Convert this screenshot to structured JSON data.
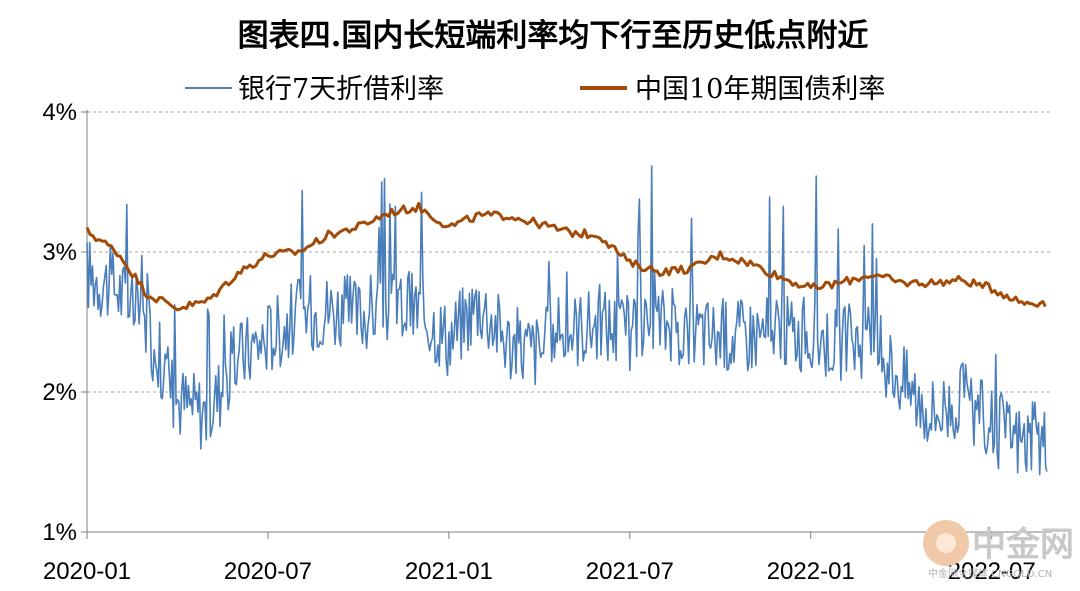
{
  "chart_data": {
    "type": "line",
    "title": "图表四.国内长短端利率均下行至历史低点附近",
    "xlabel": "",
    "ylabel": "",
    "x_ticks": [
      "2020-01",
      "2020-07",
      "2021-01",
      "2021-07",
      "2022-01",
      "2022-07"
    ],
    "y_ticks": [
      "1%",
      "2%",
      "3%",
      "4%"
    ],
    "ylim": [
      1,
      4
    ],
    "xlim": [
      "2020-01",
      "2022-09"
    ],
    "grid": "horizontal dashed",
    "legend_position": "top",
    "series": [
      {
        "name": "银行7天折借利率",
        "color": "#4a7ebb",
        "x": [
          "2020-01",
          "2020-02",
          "2020-03",
          "2020-04",
          "2020-05",
          "2020-06",
          "2020-07",
          "2020-08",
          "2020-09",
          "2020-10",
          "2020-11",
          "2020-12",
          "2021-01",
          "2021-02",
          "2021-03",
          "2021-04",
          "2021-05",
          "2021-06",
          "2021-07",
          "2021-08",
          "2021-09",
          "2021-10",
          "2021-11",
          "2021-12",
          "2022-01",
          "2022-02",
          "2022-03",
          "2022-04",
          "2022-05",
          "2022-06",
          "2022-07",
          "2022-08"
        ],
        "values": [
          2.85,
          2.75,
          2.45,
          1.95,
          1.85,
          2.25,
          2.4,
          2.55,
          2.6,
          2.55,
          2.62,
          2.6,
          2.38,
          2.65,
          2.35,
          2.3,
          2.45,
          2.5,
          2.42,
          2.5,
          2.45,
          2.4,
          2.42,
          2.45,
          2.4,
          2.35,
          2.38,
          2.1,
          1.85,
          1.95,
          1.75,
          1.65
        ]
      },
      {
        "name": "中国10年期国债利率",
        "color": "#a24b08",
        "x": [
          "2020-01",
          "2020-02",
          "2020-03",
          "2020-04",
          "2020-05",
          "2020-06",
          "2020-07",
          "2020-08",
          "2020-09",
          "2020-10",
          "2020-11",
          "2020-12",
          "2021-01",
          "2021-02",
          "2021-03",
          "2021-04",
          "2021-05",
          "2021-06",
          "2021-07",
          "2021-08",
          "2021-09",
          "2021-10",
          "2021-11",
          "2021-12",
          "2022-01",
          "2022-02",
          "2022-03",
          "2022-04",
          "2022-05",
          "2022-06",
          "2022-07",
          "2022-08"
        ],
        "values": [
          3.15,
          3.0,
          2.7,
          2.6,
          2.65,
          2.85,
          2.98,
          3.0,
          3.12,
          3.18,
          3.28,
          3.32,
          3.18,
          3.26,
          3.26,
          3.2,
          3.14,
          3.12,
          2.92,
          2.86,
          2.88,
          2.98,
          2.92,
          2.82,
          2.74,
          2.78,
          2.84,
          2.78,
          2.78,
          2.8,
          2.74,
          2.64
        ]
      }
    ]
  },
  "watermark": {
    "brand": "中金网",
    "sub": "中金网全媒体 CNGOLD.CN",
    "color": "#c8c8c8"
  }
}
